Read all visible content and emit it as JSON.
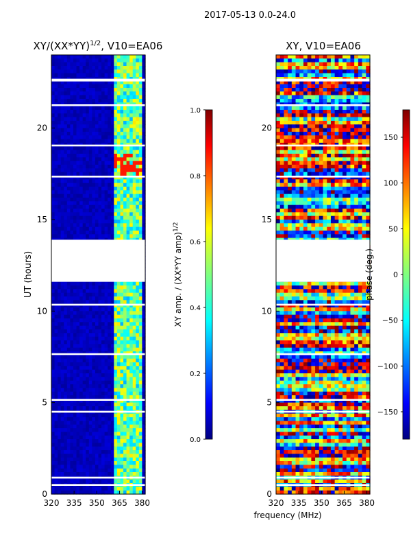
{
  "figure_title": "2017-05-13 0.0-24.0",
  "shared_xlabel": "frequency (MHz)",
  "colors": {
    "jet": [
      "#00007f",
      "#0000ff",
      "#007fff",
      "#00ffff",
      "#7fff7f",
      "#ffff00",
      "#ff7f00",
      "#ff0000",
      "#7f0000"
    ],
    "flag": "#ffffff",
    "axis": "#000000"
  },
  "chart_data": [
    {
      "type": "heatmap",
      "name": "amplitude-panel",
      "title_main": "XY/(XX*YY)",
      "title_sup": "1/2",
      "title_suffix": ", V10=EA06",
      "xlabel": "",
      "ylabel": "UT (hours)",
      "xlim": [
        320,
        382
      ],
      "ylim": [
        0,
        24
      ],
      "xticks": [
        320,
        335,
        350,
        365,
        380
      ],
      "yticks": [
        0,
        5,
        10,
        15,
        20
      ],
      "masked_hours": [
        [
          13.9,
          11.6
        ],
        [
          22.55,
          22.7
        ],
        [
          21.2,
          21.3
        ],
        [
          19.0,
          19.1
        ],
        [
          17.3,
          17.4
        ],
        [
          10.3,
          10.4
        ],
        [
          7.6,
          7.7
        ],
        [
          5.1,
          5.2
        ],
        [
          4.45,
          4.55
        ],
        [
          0.85,
          0.95
        ],
        [
          0.45,
          0.55
        ]
      ],
      "active_band_mhz": [
        362,
        380
      ],
      "hot_spot": {
        "hours": [
          17.4,
          18.6
        ],
        "value": 0.85
      },
      "colorbar": {
        "label_main": "XY amp. / (XX*YY amp)",
        "label_sup": "1/2",
        "range": [
          0.0,
          1.0
        ],
        "ticks": [
          "0.0",
          "0.2",
          "0.4",
          "0.6",
          "0.8",
          "1.0"
        ]
      }
    },
    {
      "type": "heatmap",
      "name": "phase-panel",
      "title": "XY, V10=EA06",
      "xlabel": "",
      "ylabel": "",
      "xlim": [
        320,
        382
      ],
      "ylim": [
        0,
        24
      ],
      "xticks": [
        320,
        335,
        350,
        365,
        380
      ],
      "yticks": [
        0,
        5,
        10,
        15,
        20
      ],
      "masked_hours": [
        [
          13.9,
          11.6
        ],
        [
          22.55,
          22.7
        ],
        [
          21.2,
          21.3
        ],
        [
          19.0,
          19.1
        ],
        [
          17.3,
          17.4
        ],
        [
          10.3,
          10.4
        ],
        [
          7.6,
          7.7
        ],
        [
          5.1,
          5.2
        ],
        [
          4.45,
          4.55
        ],
        [
          0.85,
          0.95
        ],
        [
          0.45,
          0.55
        ]
      ],
      "colorbar": {
        "label": "phase (deg.)",
        "range": [
          -180,
          180
        ],
        "ticks": [
          "−150",
          "−100",
          "−50",
          "0",
          "50",
          "100",
          "150"
        ]
      }
    }
  ]
}
